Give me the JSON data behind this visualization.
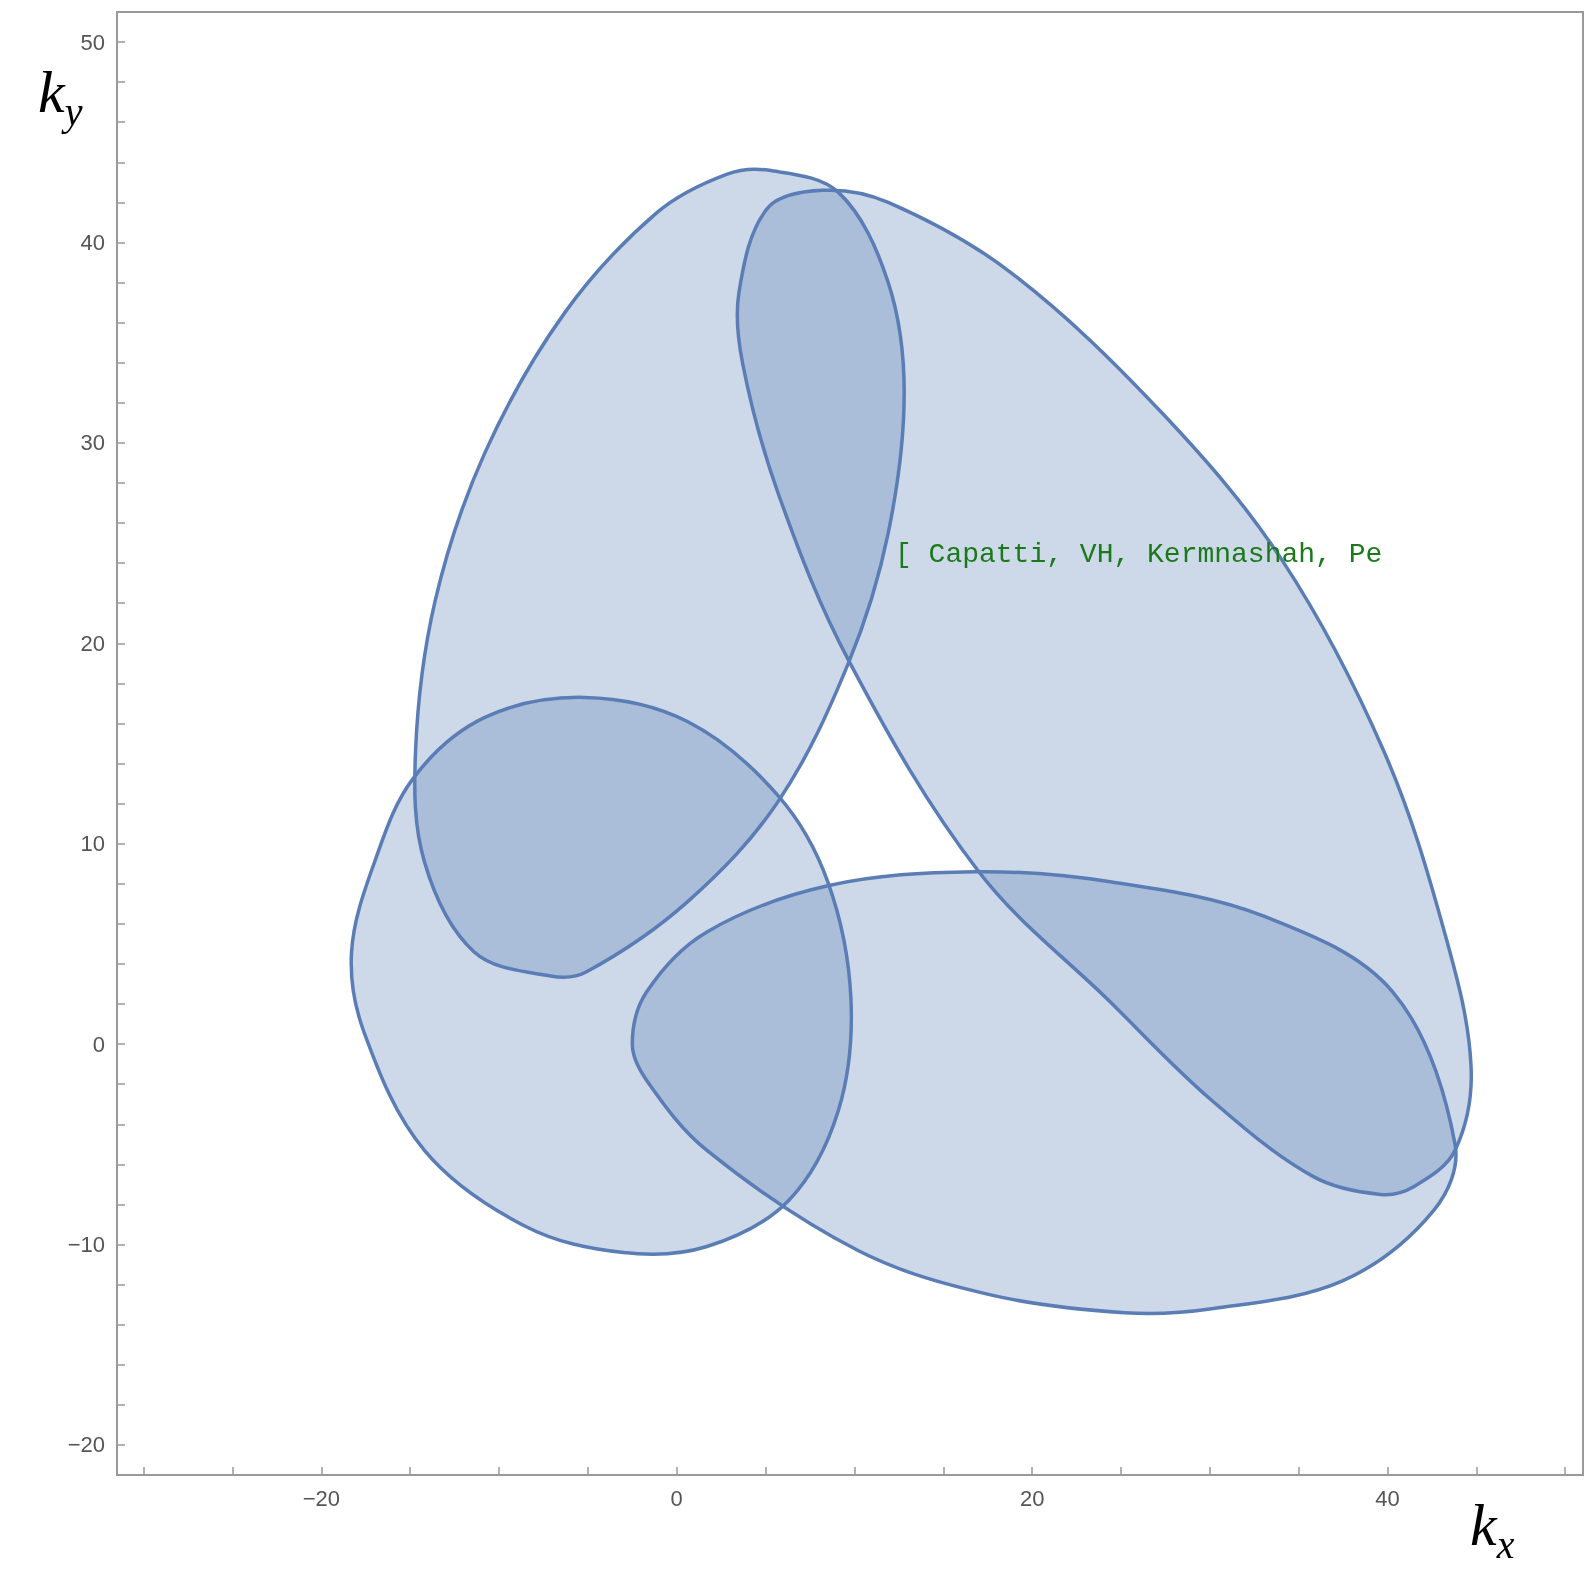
{
  "chart_data": {
    "type": "area",
    "xlabel": "k$_{x}$",
    "ylabel": "k$_{y}$",
    "annotations": [
      "[ Capatti, VH, Kermnashah, Pe"
    ],
    "xlim": [
      -31.5,
      51
    ],
    "ylim": [
      -21.5,
      51.5
    ],
    "xticks": [
      {
        "value": -30,
        "label": null
      },
      {
        "value": -25,
        "label": null
      },
      -20,
      {
        "value": -15,
        "label": null
      },
      {
        "value": -10,
        "label": null
      },
      {
        "value": -5,
        "label": null
      },
      0,
      {
        "value": 5,
        "label": null
      },
      {
        "value": 10,
        "label": null
      },
      {
        "value": 15,
        "label": null
      },
      20,
      {
        "value": 25,
        "label": null
      },
      {
        "value": 30,
        "label": null
      },
      {
        "value": 35,
        "label": null
      },
      40,
      {
        "value": 45,
        "label": null
      },
      {
        "value": 50,
        "label": null
      }
    ],
    "yticks": [
      -20,
      {
        "value": -18,
        "label": null
      },
      {
        "value": -16,
        "label": null
      },
      {
        "value": -14,
        "label": null
      },
      {
        "value": -12,
        "label": null
      },
      -10,
      {
        "value": -8,
        "label": null
      },
      {
        "value": -6,
        "label": null
      },
      {
        "value": -4,
        "label": null
      },
      {
        "value": -2,
        "label": null
      },
      0,
      {
        "value": 2,
        "label": null
      },
      {
        "value": 4,
        "label": null
      },
      {
        "value": 6,
        "label": null
      },
      {
        "value": 8,
        "label": null
      },
      10,
      {
        "value": 12,
        "label": null
      },
      {
        "value": 14,
        "label": null
      },
      {
        "value": 16,
        "label": null
      },
      {
        "value": 18,
        "label": null
      },
      20,
      {
        "value": 22,
        "label": null
      },
      {
        "value": 24,
        "label": null
      },
      {
        "value": 26,
        "label": null
      },
      {
        "value": 28,
        "label": null
      },
      30,
      {
        "value": 32,
        "label": null
      },
      {
        "value": 34,
        "label": null
      },
      {
        "value": 36,
        "label": null
      },
      {
        "value": 38,
        "label": null
      },
      40,
      {
        "value": 42,
        "label": null
      },
      {
        "value": 44,
        "label": null
      },
      {
        "value": 46,
        "label": null
      },
      {
        "value": 48,
        "label": null
      },
      50
    ],
    "grid": false,
    "series": [
      {
        "color": "#5b7db5",
        "x": [
          5.2,
          9.1,
          11.9,
          12.8,
          11.9,
          9.7,
          5.7,
          0.6,
          -5.1,
          -7.1,
          -11.4,
          -14.2,
          -14.7,
          -13.6,
          -10.8,
          -6.3,
          -1.1,
          2.8
        ],
        "values": [
          43.6,
          42.5,
          38,
          32.5,
          25.5,
          19.1,
          12.1,
          7.1,
          3.6,
          3.4,
          4.6,
          9.1,
          14.6,
          22.1,
          29.5,
          36.5,
          41.5,
          43.4
        ]
      },
      {
        "color": "#5b7db5",
        "x": [
          8.2,
          11.9,
          18.8,
          27.3,
          34.1,
          39.8,
          43.2,
          44.7,
          43.8,
          41.5,
          39.6,
          35.8,
          30.1,
          24.4,
          17,
          9.7,
          5.7,
          3.7,
          3.5,
          5.1
        ],
        "values": [
          42.6,
          42,
          38.5,
          31.5,
          24.1,
          14.6,
          5.6,
          -1.1,
          -5.3,
          -7.1,
          -7.5,
          -6.6,
          -2.8,
          2.1,
          8.6,
          19.1,
          27.5,
          34,
          37.5,
          41.7
        ]
      },
      {
        "color": "#5b7db5",
        "x": [
          -5.2,
          0.6,
          5.7,
          8.5,
          9.8,
          9.1,
          6.3,
          1.7,
          -3,
          -8.5,
          -14.2,
          -17.6,
          -18.3,
          -17,
          -14.8,
          -10.8
        ],
        "values": [
          17.3,
          16.1,
          12.4,
          8.1,
          2.3,
          -3.3,
          -7.8,
          -10.1,
          -10.4,
          -9.1,
          -5.3,
          0.6,
          4.6,
          9.1,
          13.3,
          16.3
        ]
      },
      {
        "color": "#5b7db5",
        "x": [
          16.8,
          24.4,
          33,
          40.3,
          43.8,
          42.6,
          37.5,
          30.1,
          25.2,
          17.6,
          10.2,
          1.7,
          -1.7,
          -2.5,
          -1.7,
          1.7,
          8.5
        ],
        "values": [
          8.6,
          8.1,
          6.4,
          2.6,
          -5,
          -8.3,
          -11.8,
          -13.2,
          -13.4,
          -12.5,
          -10.3,
          -5.3,
          -1.8,
          0,
          2.6,
          5.6,
          7.9
        ]
      }
    ]
  }
}
